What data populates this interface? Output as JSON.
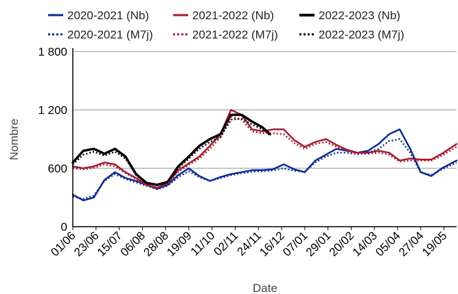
{
  "chart_data": {
    "type": "line",
    "xlabel": "Date",
    "ylabel": "Nombre",
    "ylim": [
      0,
      1800
    ],
    "yticks": [
      {
        "value": 0,
        "label": "0"
      },
      {
        "value": 600,
        "label": "600"
      },
      {
        "value": 1200,
        "label": "1 200"
      },
      {
        "value": 1800,
        "label": "1 800"
      }
    ],
    "xlim": [
      0,
      364
    ],
    "xticks": [
      {
        "day": 0,
        "label": "01/06"
      },
      {
        "day": 22,
        "label": "23/06"
      },
      {
        "day": 44,
        "label": "15/07"
      },
      {
        "day": 66,
        "label": "06/08"
      },
      {
        "day": 88,
        "label": "28/08"
      },
      {
        "day": 110,
        "label": "19/09"
      },
      {
        "day": 132,
        "label": "11/10"
      },
      {
        "day": 154,
        "label": "02/11"
      },
      {
        "day": 176,
        "label": "24/11"
      },
      {
        "day": 198,
        "label": "16/12"
      },
      {
        "day": 220,
        "label": "07/01"
      },
      {
        "day": 242,
        "label": "29/01"
      },
      {
        "day": 264,
        "label": "20/02"
      },
      {
        "day": 286,
        "label": "14/03"
      },
      {
        "day": 308,
        "label": "05/04"
      },
      {
        "day": 330,
        "label": "27/04"
      },
      {
        "day": 352,
        "label": "19/05"
      }
    ],
    "grid": "horizontal",
    "legend_position": "top",
    "series": [
      {
        "name": "2020-2021 (Nb)",
        "color": "#0a2a96",
        "style": "solid",
        "points": [
          [
            0,
            330
          ],
          [
            10,
            270
          ],
          [
            20,
            300
          ],
          [
            30,
            480
          ],
          [
            40,
            560
          ],
          [
            50,
            500
          ],
          [
            60,
            470
          ],
          [
            70,
            430
          ],
          [
            80,
            390
          ],
          [
            90,
            430
          ],
          [
            100,
            530
          ],
          [
            110,
            600
          ],
          [
            120,
            520
          ],
          [
            130,
            470
          ],
          [
            140,
            510
          ],
          [
            150,
            540
          ],
          [
            160,
            560
          ],
          [
            170,
            580
          ],
          [
            180,
            580
          ],
          [
            190,
            590
          ],
          [
            200,
            640
          ],
          [
            210,
            590
          ],
          [
            220,
            560
          ],
          [
            230,
            680
          ],
          [
            240,
            740
          ],
          [
            250,
            800
          ],
          [
            260,
            780
          ],
          [
            270,
            760
          ],
          [
            280,
            780
          ],
          [
            290,
            850
          ],
          [
            300,
            950
          ],
          [
            310,
            1000
          ],
          [
            320,
            800
          ],
          [
            330,
            560
          ],
          [
            340,
            520
          ],
          [
            350,
            600
          ],
          [
            364,
            680
          ]
        ]
      },
      {
        "name": "2021-2022 (Nb)",
        "color": "#aa1a2e",
        "style": "solid",
        "points": [
          [
            0,
            620
          ],
          [
            10,
            600
          ],
          [
            20,
            620
          ],
          [
            30,
            660
          ],
          [
            40,
            640
          ],
          [
            50,
            560
          ],
          [
            60,
            500
          ],
          [
            70,
            430
          ],
          [
            80,
            400
          ],
          [
            90,
            450
          ],
          [
            100,
            580
          ],
          [
            110,
            650
          ],
          [
            120,
            720
          ],
          [
            130,
            830
          ],
          [
            140,
            950
          ],
          [
            150,
            1200
          ],
          [
            160,
            1150
          ],
          [
            170,
            1000
          ],
          [
            180,
            980
          ],
          [
            190,
            1000
          ],
          [
            200,
            1000
          ],
          [
            210,
            890
          ],
          [
            220,
            820
          ],
          [
            230,
            870
          ],
          [
            240,
            900
          ],
          [
            250,
            840
          ],
          [
            260,
            790
          ],
          [
            270,
            760
          ],
          [
            280,
            760
          ],
          [
            290,
            780
          ],
          [
            300,
            760
          ],
          [
            310,
            680
          ],
          [
            320,
            700
          ],
          [
            330,
            690
          ],
          [
            340,
            690
          ],
          [
            350,
            750
          ],
          [
            364,
            850
          ]
        ]
      },
      {
        "name": "2022-2023 (Nb)",
        "color": "#000000",
        "style": "solid",
        "points": [
          [
            0,
            660
          ],
          [
            10,
            780
          ],
          [
            20,
            800
          ],
          [
            30,
            750
          ],
          [
            40,
            800
          ],
          [
            50,
            720
          ],
          [
            60,
            540
          ],
          [
            70,
            450
          ],
          [
            80,
            430
          ],
          [
            90,
            460
          ],
          [
            100,
            620
          ],
          [
            110,
            720
          ],
          [
            120,
            830
          ],
          [
            130,
            900
          ],
          [
            140,
            950
          ],
          [
            150,
            1150
          ],
          [
            160,
            1150
          ],
          [
            170,
            1080
          ],
          [
            180,
            1020
          ],
          [
            187,
            950
          ]
        ]
      },
      {
        "name": "2020-2021 (M7j)",
        "color": "#0a2a96",
        "style": "dotted",
        "points": [
          [
            0,
            310
          ],
          [
            10,
            285
          ],
          [
            20,
            320
          ],
          [
            30,
            470
          ],
          [
            40,
            540
          ],
          [
            50,
            490
          ],
          [
            60,
            455
          ],
          [
            70,
            420
          ],
          [
            80,
            385
          ],
          [
            90,
            420
          ],
          [
            100,
            510
          ],
          [
            110,
            570
          ],
          [
            120,
            510
          ],
          [
            130,
            470
          ],
          [
            140,
            500
          ],
          [
            150,
            530
          ],
          [
            160,
            550
          ],
          [
            170,
            565
          ],
          [
            180,
            570
          ],
          [
            190,
            580
          ],
          [
            200,
            600
          ],
          [
            210,
            575
          ],
          [
            220,
            565
          ],
          [
            230,
            660
          ],
          [
            240,
            720
          ],
          [
            250,
            760
          ],
          [
            260,
            760
          ],
          [
            270,
            745
          ],
          [
            280,
            760
          ],
          [
            290,
            800
          ],
          [
            300,
            880
          ],
          [
            310,
            900
          ],
          [
            320,
            760
          ],
          [
            330,
            560
          ],
          [
            340,
            530
          ],
          [
            350,
            590
          ],
          [
            364,
            660
          ]
        ]
      },
      {
        "name": "2021-2022 (M7j)",
        "color": "#aa1a2e",
        "style": "dotted",
        "points": [
          [
            0,
            600
          ],
          [
            10,
            590
          ],
          [
            20,
            605
          ],
          [
            30,
            640
          ],
          [
            40,
            620
          ],
          [
            50,
            550
          ],
          [
            60,
            490
          ],
          [
            70,
            425
          ],
          [
            80,
            400
          ],
          [
            90,
            445
          ],
          [
            100,
            565
          ],
          [
            110,
            635
          ],
          [
            120,
            700
          ],
          [
            130,
            800
          ],
          [
            140,
            920
          ],
          [
            150,
            1130
          ],
          [
            160,
            1100
          ],
          [
            170,
            980
          ],
          [
            180,
            960
          ],
          [
            190,
            960
          ],
          [
            200,
            950
          ],
          [
            210,
            860
          ],
          [
            220,
            800
          ],
          [
            230,
            850
          ],
          [
            240,
            870
          ],
          [
            250,
            820
          ],
          [
            260,
            780
          ],
          [
            270,
            750
          ],
          [
            280,
            750
          ],
          [
            290,
            760
          ],
          [
            300,
            740
          ],
          [
            310,
            670
          ],
          [
            320,
            680
          ],
          [
            330,
            680
          ],
          [
            340,
            680
          ],
          [
            350,
            730
          ],
          [
            364,
            820
          ]
        ]
      },
      {
        "name": "2022-2023 (M7j)",
        "color": "#000000",
        "style": "dotted",
        "points": [
          [
            0,
            640
          ],
          [
            10,
            740
          ],
          [
            20,
            770
          ],
          [
            30,
            730
          ],
          [
            40,
            770
          ],
          [
            50,
            700
          ],
          [
            60,
            530
          ],
          [
            70,
            445
          ],
          [
            80,
            425
          ],
          [
            90,
            455
          ],
          [
            100,
            600
          ],
          [
            110,
            700
          ],
          [
            120,
            800
          ],
          [
            130,
            870
          ],
          [
            140,
            920
          ],
          [
            150,
            1100
          ],
          [
            160,
            1110
          ],
          [
            170,
            1050
          ],
          [
            180,
            1000
          ],
          [
            187,
            940
          ]
        ]
      }
    ]
  }
}
